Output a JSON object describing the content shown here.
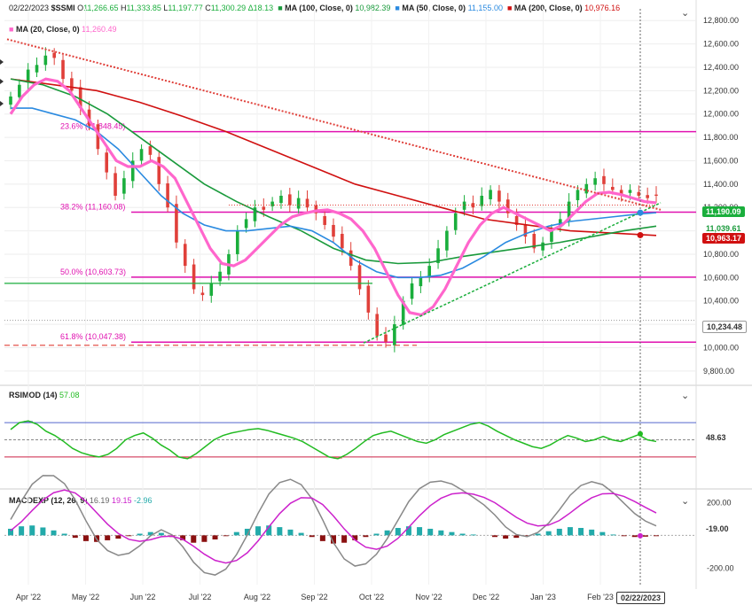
{
  "header": {
    "date": "02/22/2023",
    "symbol": "$SSMI",
    "ohlc": {
      "o": "11,266.65",
      "h": "11,333.85",
      "l": "11,197.77",
      "c": "11,300.29",
      "chg": "Δ18.13"
    },
    "ma100": {
      "label": "MA (100, Close, 0)",
      "value": "10,982.39"
    },
    "ma50": {
      "label": "MA (50, Close, 0)",
      "value": "11,155.00"
    },
    "ma200": {
      "label": "MA (200, Close, 0)",
      "value": "10,976.16"
    },
    "ma20": {
      "label": "MA (20, Close, 0)",
      "value": "11,260.49"
    }
  },
  "rsi_header": {
    "label": "RSIMOD (14)",
    "value": "57.08"
  },
  "macd_header": {
    "label": "MACDEXP (12, 26, 9)",
    "v1": "16.19",
    "v2": "19.15",
    "v3": "-2.96"
  },
  "tags": {
    "price": "11,190.09",
    "ma50": "11,039.61",
    "ma200": "10,963.17",
    "level": "10,234.48",
    "rsi": "48.63",
    "macd": "-19.00",
    "date": "02/22/2023"
  },
  "colors": {
    "up": "#1aae3c",
    "down": "#e0403a",
    "ma20": "#ff66cc",
    "ma50": "#2a8ae0",
    "ma100": "#1a9a3c",
    "ma200": "#d01010",
    "fib": "#e012b0",
    "rsi": "#22bb22"
  },
  "chart_data": [
    {
      "type": "candlestick",
      "title": "$SSMI",
      "x_labels": [
        "Apr '22",
        "May '22",
        "Jun '22",
        "Jul '22",
        "Aug '22",
        "Sep '22",
        "Oct '22",
        "Nov '22",
        "Dec '22",
        "Jan '23",
        "Feb '23"
      ],
      "y_ticks": [
        9800,
        10000,
        10200,
        10400,
        10600,
        10800,
        11000,
        11200,
        11400,
        11600,
        11800,
        12000,
        12200,
        12400,
        12600,
        12800
      ],
      "ylim": [
        9700,
        12900
      ],
      "close_series": [
        12150,
        12250,
        12380,
        12420,
        12500,
        12480,
        12300,
        12200,
        12050,
        11900,
        11700,
        11500,
        11300,
        11450,
        11600,
        11700,
        11650,
        11400,
        11200,
        10900,
        10700,
        10500,
        10450,
        10550,
        10650,
        10800,
        11000,
        11100,
        11200,
        11180,
        11250,
        11300,
        11220,
        11280,
        11200,
        11150,
        11050,
        10950,
        10850,
        10700,
        10500,
        10300,
        10100,
        10050,
        10200,
        10400,
        10550,
        10600,
        10700,
        10850,
        11000,
        11150,
        11250,
        11200,
        11300,
        11350,
        11250,
        11150,
        11050,
        10950,
        10850,
        10900,
        11000,
        11100,
        11250,
        11350,
        11400,
        11450,
        11400,
        11350,
        11300,
        11350,
        11300,
        11280,
        11300
      ],
      "fib_levels": [
        {
          "label": "23.6% (11,848.45)",
          "value": 11848.45
        },
        {
          "label": "38.2% (11,160.08)",
          "value": 11160.08
        },
        {
          "label": "50.0% (10,603.73)",
          "value": 10603.73
        },
        {
          "label": "61.8% (10,047.38)",
          "value": 10047.38
        }
      ],
      "ma20": [
        12000,
        12150,
        12250,
        12300,
        12280,
        12200,
        12050,
        11900,
        11750,
        11600,
        11550,
        11550,
        11600,
        11550,
        11450,
        11250,
        11050,
        10850,
        10720,
        10700,
        10750,
        10850,
        10950,
        11050,
        11120,
        11150,
        11170,
        11180,
        11150,
        11100,
        11000,
        10850,
        10650,
        10450,
        10300,
        10280,
        10350,
        10500,
        10700,
        10900,
        11050,
        11150,
        11200,
        11150,
        11100,
        11050,
        11000,
        11050,
        11150,
        11250,
        11320,
        11330,
        11310,
        11280,
        11250,
        11240
      ],
      "ma50": [
        12050,
        12050,
        12000,
        11950,
        11850,
        11700,
        11500,
        11300,
        11150,
        11050,
        11000,
        11000,
        11020,
        11040,
        11000,
        10900,
        10750,
        10650,
        10600,
        10600,
        10620,
        10680,
        10780,
        10900,
        10980,
        11040,
        11080,
        11100,
        11120,
        11140,
        11155
      ],
      "ma100": [
        12300,
        12250,
        12150,
        12000,
        11800,
        11600,
        11400,
        11250,
        11120,
        11000,
        10850,
        10750,
        10720,
        10730,
        10780,
        10820,
        10860,
        10900,
        10950,
        11000,
        11040
      ],
      "ma200": [
        12300,
        12250,
        12200,
        12100,
        11980,
        11850,
        11700,
        11550,
        11400,
        11300,
        11200,
        11100,
        11050,
        11000,
        10980,
        10960
      ]
    },
    {
      "type": "line",
      "title": "RSIMOD (14)",
      "ylim": [
        0,
        100
      ],
      "levels": [
        70,
        50,
        30
      ],
      "values": [
        62,
        70,
        72,
        68,
        60,
        55,
        48,
        40,
        35,
        32,
        30,
        33,
        40,
        50,
        55,
        58,
        52,
        44,
        38,
        30,
        28,
        34,
        42,
        50,
        55,
        58,
        60,
        62,
        63,
        61,
        58,
        55,
        52,
        48,
        42,
        36,
        30,
        28,
        33,
        40,
        48,
        55,
        58,
        60,
        56,
        52,
        48,
        46,
        50,
        56,
        60,
        64,
        68,
        70,
        66,
        60,
        55,
        50,
        46,
        42,
        40,
        44,
        50,
        55,
        52,
        48,
        50,
        54,
        50,
        48,
        52,
        56,
        50,
        48
      ]
    },
    {
      "type": "bar",
      "title": "MACDEXP (12, 26, 9)",
      "y_ticks": [
        200,
        -200
      ],
      "ylim": [
        -300,
        250
      ],
      "histogram": [
        40,
        55,
        60,
        48,
        30,
        10,
        -15,
        -35,
        -40,
        -30,
        -20,
        -5,
        10,
        20,
        15,
        -10,
        -30,
        -45,
        -40,
        -25,
        -5,
        20,
        40,
        55,
        60,
        50,
        35,
        15,
        -10,
        -35,
        -50,
        -45,
        -30,
        -10,
        10,
        30,
        45,
        55,
        50,
        40,
        30,
        20,
        10,
        5,
        0,
        -10,
        -20,
        -15,
        -5,
        10,
        25,
        40,
        50,
        45,
        35,
        20,
        5,
        -5,
        -10,
        -8,
        -5
      ]
    }
  ]
}
